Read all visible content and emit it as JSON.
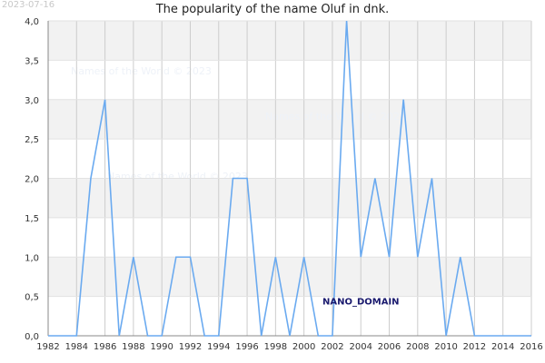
{
  "date_stamp": "2023-07-16",
  "title": "The popularity of the name Oluf in dnk.",
  "watermark_text": "Names of the World © 2023",
  "nano_label": "NANO_DOMAIN",
  "colors": {
    "line": "#6aaaf0",
    "band_dark": "#f2f2f2",
    "band_light": "#ffffff",
    "grid": "#cccccc"
  },
  "chart_data": {
    "type": "line",
    "title": "The popularity of the name Oluf in dnk.",
    "xlabel": "",
    "ylabel": "",
    "xlim": [
      1982,
      2016
    ],
    "ylim": [
      0,
      4
    ],
    "x_ticks": [
      1982,
      1984,
      1986,
      1988,
      1990,
      1992,
      1994,
      1996,
      1998,
      2000,
      2002,
      2004,
      2006,
      2008,
      2010,
      2012,
      2014,
      2016
    ],
    "y_ticks": [
      "0,0",
      "0,5",
      "1,0",
      "1,5",
      "2,0",
      "2,5",
      "3,0",
      "3,5",
      "4,0"
    ],
    "grid": true,
    "series": [
      {
        "x": [
          1982,
          1983,
          1984,
          1985,
          1986,
          1987,
          1988,
          1989,
          1990,
          1991,
          1992,
          1993,
          1994,
          1995,
          1996,
          1997,
          1998,
          1999,
          2000,
          2001,
          2002,
          2003,
          2004,
          2005,
          2006,
          2007,
          2008,
          2009,
          2010,
          2011,
          2012,
          2013,
          2014,
          2015,
          2016
        ],
        "y": [
          0,
          0,
          0,
          2,
          3,
          0,
          1,
          0,
          0,
          1,
          1,
          0,
          0,
          2,
          2,
          0,
          1,
          0,
          1,
          0,
          0,
          4,
          1,
          2,
          1,
          3,
          1,
          2,
          0,
          1,
          0,
          0,
          0,
          0,
          0
        ]
      }
    ]
  }
}
